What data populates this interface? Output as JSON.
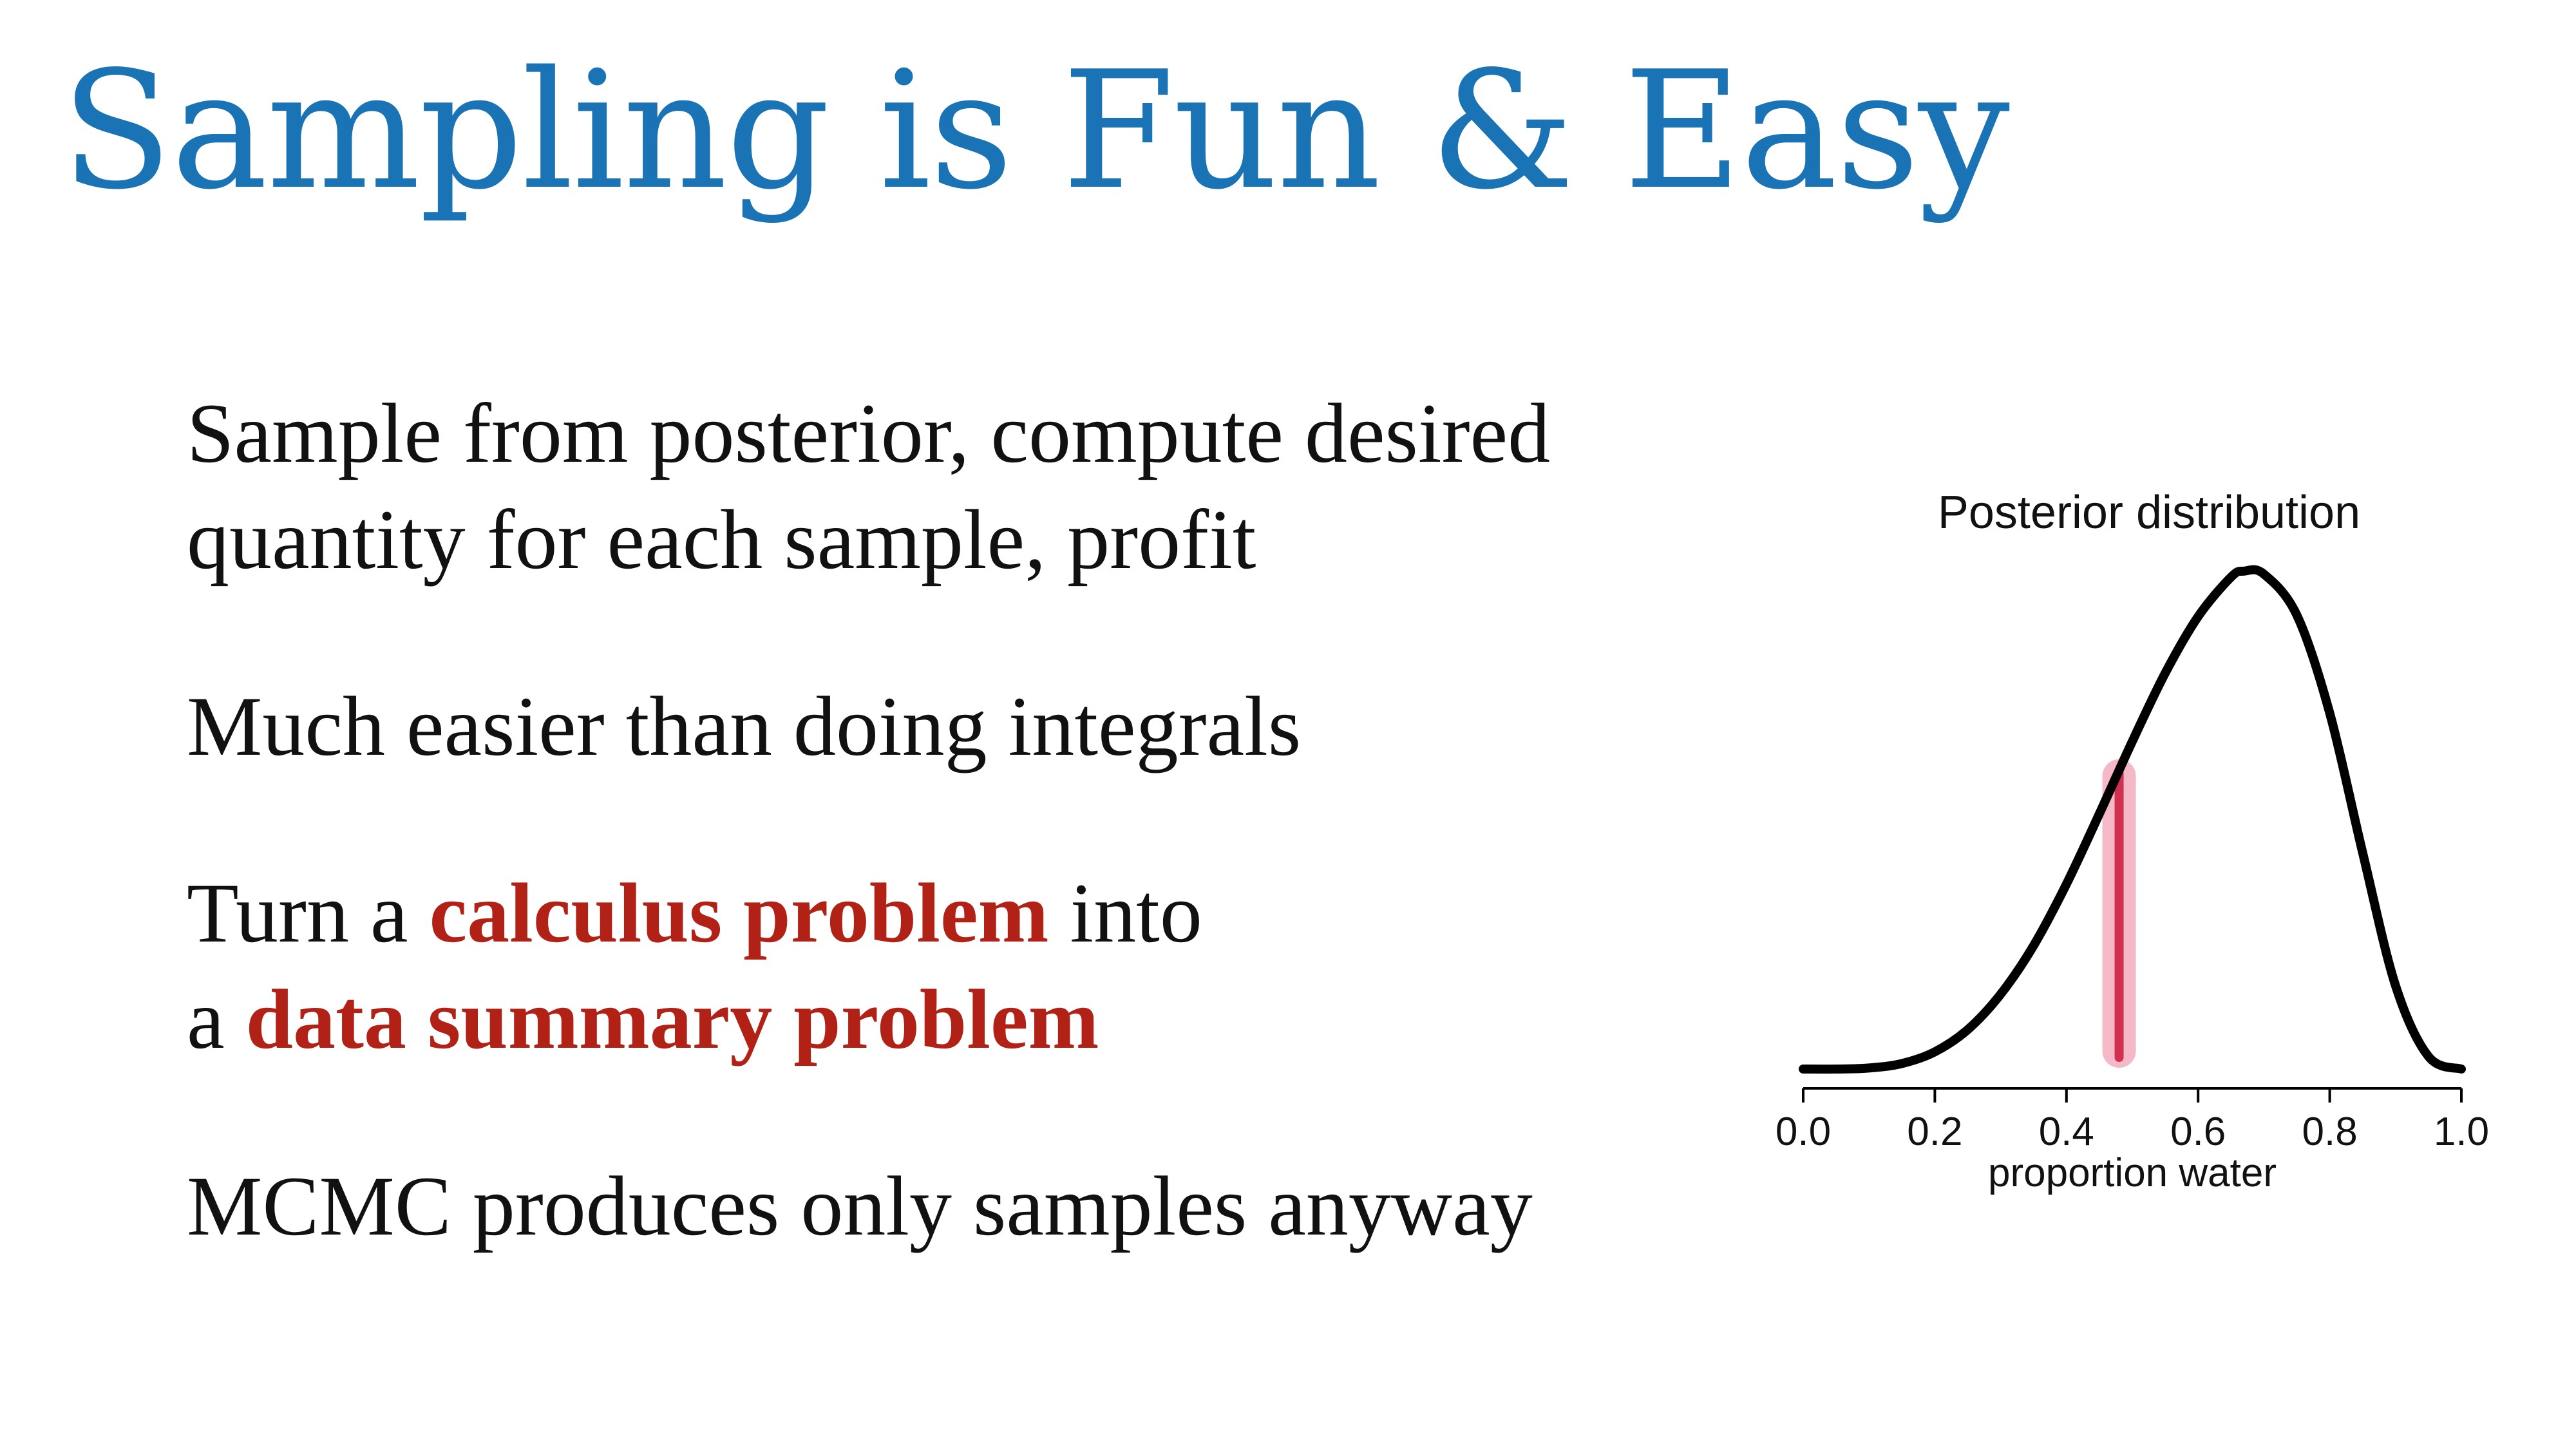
{
  "slide": {
    "title": "Sampling is Fun & Easy",
    "bullets": [
      {
        "lines": [
          [
            {
              "text": "Sample from posterior, compute desired",
              "emphasis": false
            }
          ],
          [
            {
              "text": "quantity for each sample, profit",
              "emphasis": false
            }
          ]
        ]
      },
      {
        "lines": [
          [
            {
              "text": "Much easier than doing integrals",
              "emphasis": false
            }
          ]
        ]
      },
      {
        "lines": [
          [
            {
              "text": "Turn a ",
              "emphasis": false
            },
            {
              "text": "calculus problem",
              "emphasis": true
            },
            {
              "text": " into",
              "emphasis": false
            }
          ],
          [
            {
              "text": "a ",
              "emphasis": false
            },
            {
              "text": "data summary problem",
              "emphasis": true
            }
          ]
        ]
      },
      {
        "lines": [
          [
            {
              "text": "MCMC produces only samples anyway",
              "emphasis": false
            }
          ]
        ]
      }
    ],
    "colors": {
      "title": "#1a73b5",
      "emphasis": "#b22116",
      "text": "#111111",
      "curve": "#000000",
      "marker": "#d23050",
      "marker_halo": "#f2a0b4"
    }
  },
  "chart_data": {
    "type": "line",
    "title": "Posterior distribution",
    "xlabel": "proportion water",
    "ylabel": "",
    "xlim": [
      0,
      1
    ],
    "ylim": [
      0,
      1
    ],
    "xticks": [
      "0.0",
      "0.2",
      "0.4",
      "0.6",
      "0.8",
      "1.0"
    ],
    "y_axis_visible": false,
    "grid": false,
    "series": [
      {
        "x": [
          0.0,
          0.05,
          0.1,
          0.15,
          0.2,
          0.25,
          0.3,
          0.35,
          0.4,
          0.45,
          0.5,
          0.55,
          0.6,
          0.65,
          0.67,
          0.7,
          0.75,
          0.8,
          0.85,
          0.9,
          0.95,
          1.0
        ],
        "y": [
          0.0,
          0.0,
          0.002,
          0.011,
          0.034,
          0.078,
          0.148,
          0.244,
          0.366,
          0.505,
          0.648,
          0.783,
          0.895,
          0.973,
          0.985,
          0.979,
          0.898,
          0.704,
          0.428,
          0.165,
          0.025,
          0.0
        ]
      }
    ],
    "marker": {
      "x": 0.48,
      "y_top": 0.6
    }
  }
}
